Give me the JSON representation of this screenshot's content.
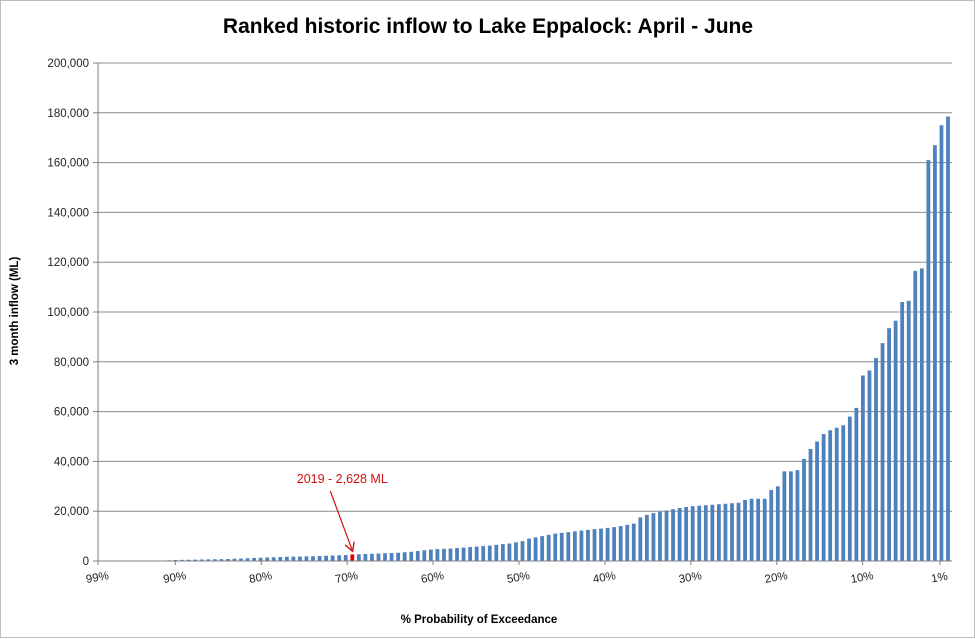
{
  "chart_data": {
    "type": "bar",
    "title": "Ranked historic inflow to Lake Eppalock: April - June",
    "xlabel": "% Probability of Exceedance",
    "ylabel": "3 month inflow (ML)",
    "ylim": [
      0,
      200000
    ],
    "yticks": [
      "0",
      "20,000",
      "40,000",
      "60,000",
      "80,000",
      "100,000",
      "120,000",
      "140,000",
      "160,000",
      "180,000",
      "200,000"
    ],
    "xticks": [
      "99%",
      "90%",
      "80%",
      "70%",
      "60%",
      "50%",
      "40%",
      "30%",
      "20%",
      "10%",
      "1%"
    ],
    "grid": true,
    "bar_color": "#4f81bd",
    "highlight_color": "#e00000",
    "values": [
      300,
      400,
      450,
      500,
      550,
      600,
      650,
      700,
      750,
      800,
      900,
      1000,
      1100,
      1200,
      1300,
      1400,
      1500,
      1600,
      1700,
      1750,
      1800,
      1850,
      1900,
      2000,
      2100,
      2200,
      2300,
      2400,
      2628,
      2700,
      2800,
      2900,
      3000,
      3100,
      3200,
      3300,
      3500,
      3700,
      4000,
      4300,
      4600,
      4800,
      4900,
      5000,
      5200,
      5400,
      5600,
      5800,
      6000,
      6200,
      6500,
      6800,
      7000,
      7500,
      8000,
      9000,
      9500,
      10000,
      10500,
      11000,
      11300,
      11600,
      11900,
      12200,
      12500,
      12800,
      13000,
      13300,
      13600,
      14000,
      14500,
      15000,
      17500,
      18500,
      19200,
      19800,
      20300,
      20800,
      21300,
      21700,
      22000,
      22200,
      22400,
      22600,
      22800,
      23000,
      23200,
      23400,
      24500,
      25000,
      25000,
      25000,
      28500,
      30000,
      36000,
      36000,
      36500,
      41000,
      45000,
      48000,
      51000,
      52500,
      53500,
      54500,
      58000,
      61500,
      74500,
      76500,
      81500,
      87500,
      93500,
      96500,
      104000,
      104500,
      116500,
      117500,
      161000,
      167000,
      175000,
      178500
    ],
    "highlight_index": 28,
    "annotations": [
      {
        "text": "2019 - 2,628 ML",
        "target_index": 28
      }
    ]
  }
}
